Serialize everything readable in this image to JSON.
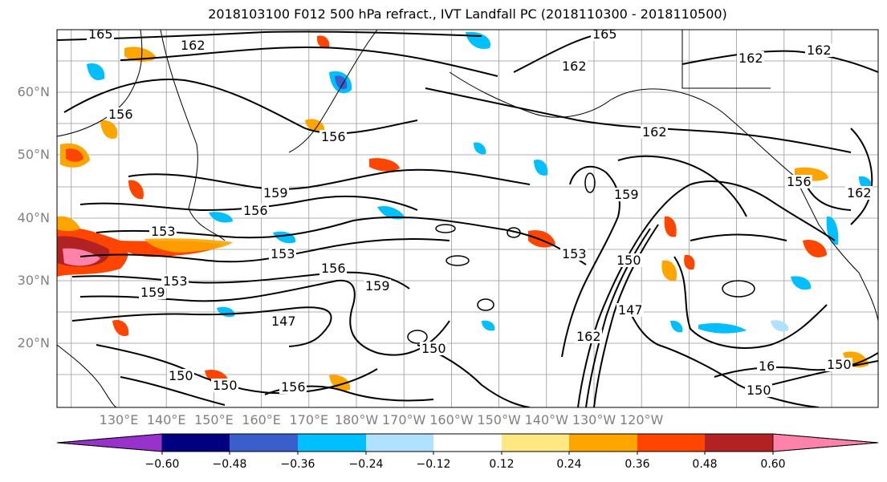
{
  "title": "2018103100 F012 500 hPa refract., IVT Landfall PC (2018110300 - 2018110500)",
  "map": {
    "lat_labels": [
      "60°N",
      "50°N",
      "40°N",
      "30°N",
      "20°N"
    ],
    "lat_values": [
      60,
      50,
      40,
      30,
      20
    ],
    "lon_labels": [
      "130°E",
      "140°E",
      "150°E",
      "160°E",
      "170°E",
      "180°W",
      "170°W",
      "160°W",
      "150°W",
      "140°W",
      "130°W",
      "120°W"
    ],
    "contour_labels": [
      "165",
      "162",
      "165",
      "162",
      "162",
      "162",
      "156",
      "156",
      "162",
      "162",
      "159",
      "156",
      "153",
      "153",
      "153",
      "156",
      "159",
      "153",
      "159",
      "159",
      "150",
      "147",
      "150",
      "147",
      "162",
      "150",
      "150",
      "150",
      "156",
      "150",
      "16",
      "156"
    ]
  },
  "colorbar": {
    "colors": [
      "#9932cc",
      "#000080",
      "#3a5fcd",
      "#00bfff",
      "#b0e2ff",
      "#ffffff",
      "#ffe882",
      "#ffa500",
      "#ff4500",
      "#b22222",
      "#ff82ab"
    ],
    "tick_labels": [
      "−0.60",
      "−0.48",
      "−0.36",
      "−0.24",
      "−0.12",
      "0.12",
      "0.24",
      "0.36",
      "0.48",
      "0.60"
    ],
    "tick_values": [
      -0.6,
      -0.48,
      -0.36,
      -0.24,
      -0.12,
      0.12,
      0.24,
      0.36,
      0.48,
      0.6
    ]
  }
}
